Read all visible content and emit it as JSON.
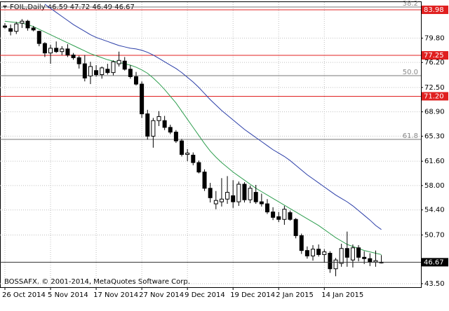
{
  "chart_data": {
    "type": "candlestick",
    "title": "FOIL,Daily  46.59 47.72 46.49 46.67",
    "footer": "BOSSAFX, © 2001-2014, MetaQuotes Software Corp.",
    "categories": [
      "26 Oct 2014",
      null,
      null,
      null,
      null,
      null,
      null,
      null,
      "5 Nov 2014",
      null,
      null,
      null,
      null,
      null,
      null,
      null,
      "17 Nov 2014",
      null,
      null,
      null,
      null,
      null,
      null,
      null,
      "27 Nov 2014",
      null,
      null,
      null,
      null,
      null,
      null,
      null,
      "9 Dec 2014",
      null,
      null,
      null,
      null,
      null,
      null,
      null,
      "19 Dec 2014",
      null,
      null,
      null,
      null,
      null,
      null,
      null,
      "2 Jan 2015",
      null,
      null,
      null,
      null,
      null,
      null,
      null,
      "14 Jan 2015",
      null,
      null,
      null,
      null,
      null,
      null,
      null,
      null,
      null,
      null
    ],
    "open": [
      81.6,
      81.2,
      80.8,
      82.0,
      82.3,
      81.3,
      80.8,
      79.0,
      77.6,
      78.3,
      77.8,
      78.2,
      77.3,
      76.9,
      76.0,
      74.2,
      75.0,
      74.4,
      75.2,
      74.7,
      76.0,
      76.4,
      75.2,
      74.1,
      73.0,
      68.6,
      65.3,
      67.6,
      67.6,
      66.6,
      65.9,
      64.6,
      62.6,
      62.5,
      61.4,
      60.0,
      57.6,
      55.3,
      55.6,
      56.0,
      56.5,
      55.6,
      58.2,
      55.9,
      57.0,
      55.6,
      55.3,
      54.1,
      53.4,
      53.0,
      54.0,
      53.0,
      50.6,
      48.4,
      47.6,
      48.6,
      47.8,
      48.0,
      45.7,
      46.5,
      48.7,
      47.0,
      48.8,
      47.4,
      47.2,
      46.7,
      46.59
    ],
    "high": [
      82.0,
      81.8,
      82.2,
      82.6,
      82.5,
      81.6,
      80.9,
      79.2,
      78.8,
      79.3,
      78.6,
      78.9,
      77.6,
      77.2,
      77.3,
      76.3,
      75.8,
      75.6,
      76.0,
      76.5,
      77.8,
      77.0,
      75.8,
      74.8,
      73.4,
      69.2,
      68.0,
      69.0,
      68.3,
      67.0,
      66.2,
      64.9,
      63.4,
      62.9,
      61.7,
      60.4,
      58.4,
      57.2,
      59.1,
      59.4,
      58.8,
      58.6,
      58.5,
      58.0,
      58.1,
      56.8,
      56.0,
      54.8,
      54.1,
      55.0,
      54.3,
      53.2,
      50.9,
      49.0,
      49.2,
      49.3,
      48.6,
      48.3,
      47.3,
      49.4,
      51.2,
      49.3,
      49.2,
      48.3,
      48.0,
      48.4,
      47.72
    ],
    "low": [
      81.2,
      80.2,
      80.4,
      81.3,
      80.9,
      80.8,
      78.6,
      77.0,
      76.0,
      77.6,
      77.3,
      77.0,
      76.6,
      75.3,
      73.4,
      73.0,
      74.1,
      73.8,
      74.4,
      74.3,
      75.6,
      75.0,
      73.8,
      72.8,
      68.0,
      64.8,
      63.6,
      66.8,
      66.2,
      65.6,
      64.3,
      62.3,
      61.6,
      61.0,
      59.8,
      57.2,
      55.5,
      54.5,
      54.9,
      55.3,
      54.7,
      55.0,
      55.5,
      55.4,
      55.3,
      54.9,
      53.8,
      52.9,
      52.6,
      52.2,
      52.8,
      50.2,
      47.9,
      47.2,
      46.9,
      47.5,
      46.6,
      45.1,
      44.6,
      46.0,
      46.0,
      45.9,
      46.8,
      46.4,
      46.1,
      46.0,
      46.49
    ],
    "close": [
      81.4,
      80.8,
      81.9,
      82.3,
      81.3,
      81.0,
      79.0,
      77.6,
      78.3,
      77.8,
      78.2,
      77.3,
      76.9,
      76.0,
      73.9,
      75.6,
      74.4,
      75.4,
      74.7,
      76.3,
      76.5,
      75.2,
      74.1,
      73.0,
      68.6,
      65.3,
      67.6,
      68.2,
      66.6,
      65.9,
      64.6,
      62.6,
      62.8,
      61.4,
      60.0,
      57.6,
      56.2,
      55.8,
      56.0,
      57.0,
      55.6,
      58.2,
      55.9,
      57.6,
      55.6,
      55.3,
      54.1,
      53.3,
      53.0,
      54.5,
      53.0,
      50.6,
      48.4,
      47.6,
      48.6,
      47.8,
      48.2,
      45.7,
      47.0,
      48.7,
      47.4,
      48.8,
      47.4,
      47.2,
      46.7,
      46.9,
      46.67
    ],
    "indicators": [
      {
        "color": "#2e9e4f",
        "values": [
          82.3,
          82.2,
          82.1,
          82.0,
          81.8,
          81.5,
          81.1,
          80.7,
          80.3,
          79.9,
          79.5,
          79.1,
          78.7,
          78.3,
          77.9,
          77.5,
          77.2,
          76.9,
          76.6,
          76.4,
          76.2,
          76.0,
          75.8,
          75.5,
          75.1,
          74.6,
          73.9,
          73.1,
          72.2,
          71.2,
          70.2,
          69.0,
          67.8,
          66.6,
          65.4,
          64.2,
          63.1,
          62.2,
          61.4,
          60.7,
          60.0,
          59.4,
          58.8,
          58.2,
          57.6,
          57.1,
          56.6,
          56.1,
          55.6,
          55.1,
          54.6,
          54.1,
          53.6,
          53.1,
          52.6,
          52.1,
          51.5,
          50.9,
          50.3,
          49.8,
          49.3,
          49.0,
          48.7,
          48.4,
          48.2,
          48.0,
          47.8
        ]
      },
      {
        "color": "#2b3ea8",
        "values": [
          null,
          null,
          null,
          null,
          null,
          null,
          null,
          84.8,
          84.2,
          83.6,
          83.0,
          82.4,
          81.8,
          81.3,
          80.8,
          80.3,
          79.9,
          79.6,
          79.3,
          79.0,
          78.7,
          78.5,
          78.3,
          78.2,
          78.0,
          77.7,
          77.3,
          76.8,
          76.3,
          75.8,
          75.3,
          74.7,
          74.0,
          73.3,
          72.5,
          71.6,
          70.7,
          69.9,
          69.1,
          68.4,
          67.7,
          67.0,
          66.3,
          65.7,
          65.1,
          64.5,
          63.9,
          63.3,
          62.8,
          62.3,
          61.7,
          61.0,
          60.3,
          59.6,
          59.0,
          58.4,
          57.8,
          57.2,
          56.6,
          56.1,
          55.6,
          55.0,
          54.3,
          53.6,
          52.9,
          52.1,
          51.5
        ]
      }
    ],
    "levels": [
      {
        "value": 83.98,
        "label": "83.98"
      },
      {
        "value": 77.25,
        "label": "77.25"
      },
      {
        "value": 71.2,
        "label": "71.20"
      }
    ],
    "level_color": "#e02020",
    "fib_levels": [
      {
        "value": 84.4,
        "label": "38.2"
      },
      {
        "value": 74.25,
        "label": "50.0"
      },
      {
        "value": 64.83,
        "label": "61.8"
      }
    ],
    "last_price": 46.67,
    "ylim": [
      42.98,
      85.12
    ],
    "yticks": [
      {
        "value": 79.8,
        "label": "79.80"
      },
      {
        "value": 76.2,
        "label": "76.20"
      },
      {
        "value": 72.5,
        "label": "72.50"
      },
      {
        "value": 68.9,
        "label": "68.90"
      },
      {
        "value": 65.3,
        "label": "65.30"
      },
      {
        "value": 61.6,
        "label": "61.60"
      },
      {
        "value": 58.0,
        "label": "58.00"
      },
      {
        "value": 54.4,
        "label": "54.40"
      },
      {
        "value": 50.7,
        "label": "50.70"
      },
      {
        "value": 43.5,
        "label": "43.50"
      }
    ],
    "grid": true
  }
}
